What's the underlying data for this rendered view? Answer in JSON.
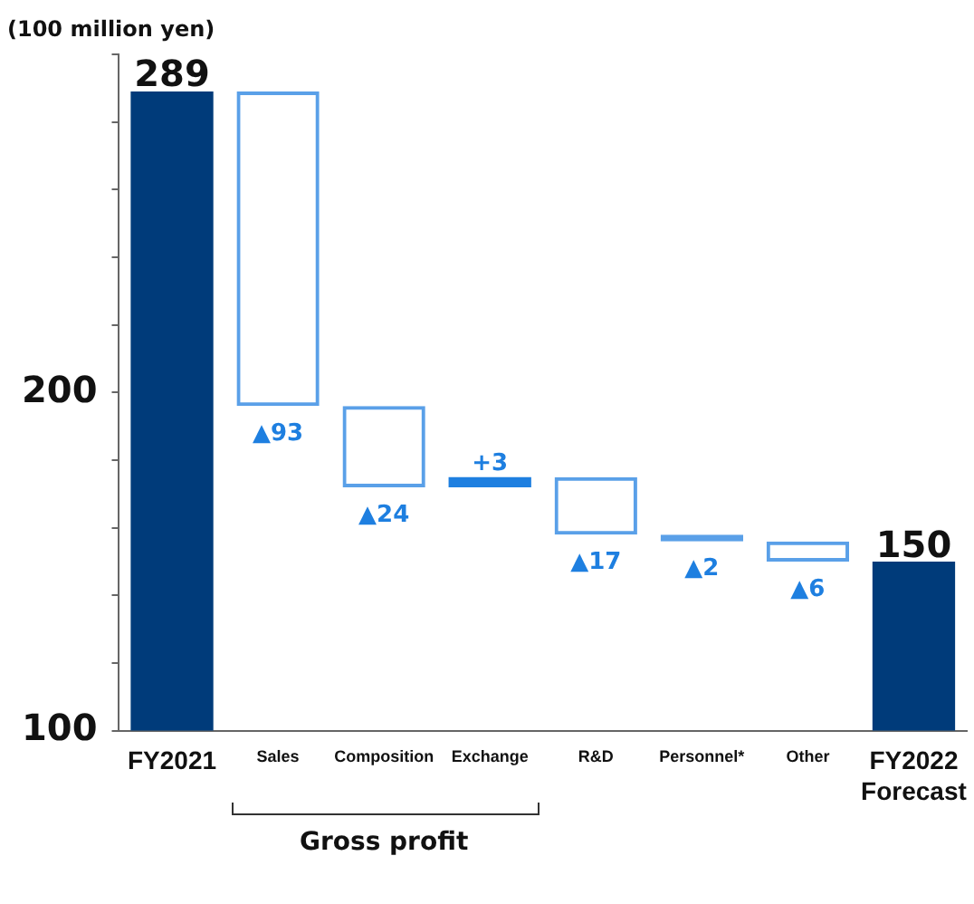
{
  "chart_data": {
    "type": "bar",
    "ylabel": "(100 million yen)",
    "categories": [
      "FY2021",
      "Sales",
      "Composition",
      "Exchange",
      "R&D",
      "Personnel*",
      "Other",
      "FY2022\nForecast"
    ],
    "values": [
      289,
      -93,
      -24,
      3,
      -17,
      -2,
      -6,
      150
    ],
    "base": [
      null,
      289,
      196,
      172,
      175,
      158,
      156,
      null
    ],
    "colors": [
      "#003b7a",
      "#5aa0e8",
      "#5aa0e8",
      "#1e7fe0",
      "#5aa0e8",
      "#5aa0e8",
      "#5aa0e8",
      "#003b7a"
    ],
    "value_labels": [
      "289",
      "▲93",
      "▲24",
      "+3",
      "▲17",
      "▲2",
      "▲6",
      "150"
    ],
    "ylim": [
      100,
      300
    ],
    "yticks": [
      100,
      {
        "value": 120,
        "label": null
      },
      {
        "value": 140,
        "label": null
      },
      {
        "value": 160,
        "label": null
      },
      {
        "value": 180,
        "label": null
      },
      200,
      {
        "value": 220,
        "label": null
      },
      {
        "value": 240,
        "label": null
      },
      {
        "value": 260,
        "label": null
      },
      {
        "value": 280,
        "label": null
      },
      {
        "value": 300,
        "label": null
      }
    ],
    "annotations": [
      "Gross profit"
    ],
    "grid": false,
    "legend": false
  }
}
